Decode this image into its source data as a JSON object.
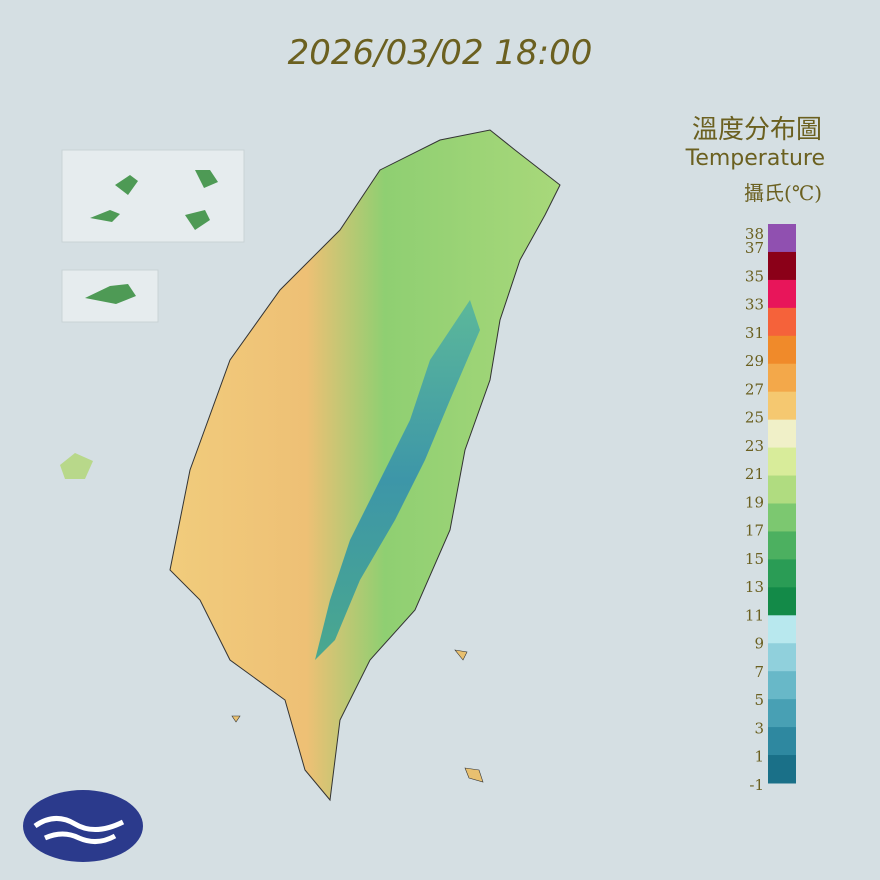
{
  "header": {
    "timestamp": "2026/03/02 18:00"
  },
  "legend": {
    "title": "溫度分布圖",
    "subtitle": "Temperature",
    "unit": "攝氏(℃)",
    "ticks": [
      38,
      37,
      35,
      33,
      31,
      29,
      27,
      25,
      23,
      21,
      19,
      17,
      15,
      13,
      11,
      9,
      7,
      5,
      3,
      1,
      -1
    ],
    "colors": [
      "#9050b0",
      "#8b0018",
      "#e8155a",
      "#f5623a",
      "#f08a2a",
      "#f3a84a",
      "#f5c870",
      "#f0f0c8",
      "#d8ec9a",
      "#b0dc80",
      "#7cc870",
      "#4cb060",
      "#2a9c55",
      "#138a48",
      "#b8e8ee",
      "#90d0dc",
      "#68b8c8",
      "#48a0b4",
      "#2e88a0",
      "#1a7088"
    ]
  }
}
